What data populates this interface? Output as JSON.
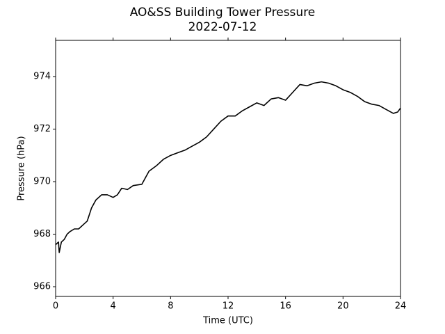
{
  "chart_data": {
    "type": "line",
    "title": "AO&SS Building Tower Pressure",
    "subtitle": "2022-07-12",
    "x_label": "Time (UTC)",
    "y_label": "Pressure (hPa)",
    "x": [
      0,
      0.2,
      0.25,
      0.4,
      0.6,
      0.8,
      1.0,
      1.3,
      1.6,
      2.0,
      2.2,
      2.5,
      2.8,
      3.2,
      3.6,
      4.0,
      4.3,
      4.6,
      5.0,
      5.4,
      6.0,
      6.5,
      7.0,
      7.5,
      8.0,
      8.5,
      9.0,
      9.5,
      10.0,
      10.5,
      11.0,
      11.5,
      12.0,
      12.5,
      13.0,
      13.5,
      14.0,
      14.5,
      15.0,
      15.5,
      16.0,
      16.5,
      17.0,
      17.5,
      18.0,
      18.5,
      19.0,
      19.5,
      20.0,
      20.5,
      21.0,
      21.5,
      22.0,
      22.5,
      23.0,
      23.5,
      23.8,
      24.0
    ],
    "series": [
      {
        "name": "Pressure",
        "color": "#000000",
        "values": [
          967.6,
          967.7,
          967.3,
          967.7,
          967.8,
          968.0,
          968.1,
          968.2,
          968.2,
          968.4,
          968.5,
          969.0,
          969.3,
          969.5,
          969.5,
          969.4,
          969.5,
          969.75,
          969.7,
          969.85,
          969.9,
          970.4,
          970.6,
          970.85,
          971.0,
          971.1,
          971.2,
          971.35,
          971.5,
          971.7,
          972.0,
          972.3,
          972.5,
          972.5,
          972.7,
          972.85,
          973.0,
          972.9,
          973.15,
          973.2,
          973.1,
          973.4,
          973.7,
          973.65,
          973.75,
          973.8,
          973.75,
          973.65,
          973.5,
          973.4,
          973.25,
          973.05,
          972.95,
          972.9,
          972.75,
          972.6,
          972.65,
          972.8
        ]
      }
    ],
    "xlim": [
      0,
      24
    ],
    "xticks": [
      0,
      4,
      8,
      12,
      16,
      20,
      24
    ],
    "ylim": [
      965.63,
      975.38
    ],
    "yticks": [
      966,
      968,
      970,
      972,
      974
    ],
    "grid": false
  }
}
